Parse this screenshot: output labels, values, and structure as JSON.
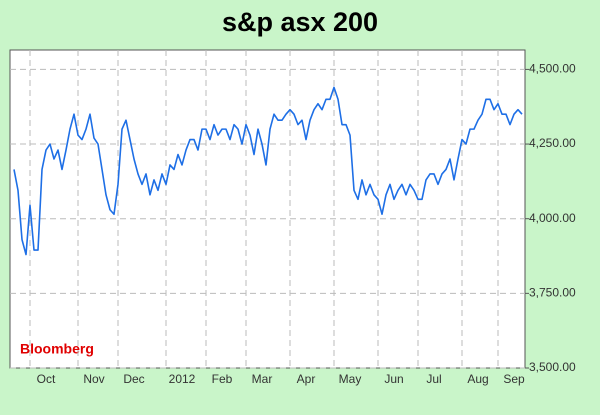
{
  "chart_data": {
    "type": "line",
    "title": "s&p asx 200",
    "annotation": "Bloomberg",
    "categories": [
      null,
      null,
      null,
      null,
      null,
      null,
      null,
      null,
      "Oct",
      null,
      null,
      null,
      null,
      null,
      null,
      null,
      null,
      null,
      null,
      null,
      "Nov",
      null,
      null,
      null,
      null,
      null,
      null,
      null,
      null,
      null,
      "Dec",
      null,
      null,
      null,
      null,
      null,
      null,
      null,
      null,
      null,
      null,
      null,
      "2012",
      null,
      null,
      null,
      null,
      null,
      null,
      null,
      null,
      null,
      "Feb",
      null,
      null,
      null,
      null,
      null,
      null,
      null,
      null,
      null,
      "Mar",
      null,
      null,
      null,
      null,
      null,
      null,
      null,
      null,
      null,
      null,
      "Apr",
      null,
      null,
      null,
      null,
      null,
      null,
      null,
      null,
      null,
      null,
      "May",
      null,
      null,
      null,
      null,
      null,
      null,
      null,
      null,
      null,
      null,
      "Jun",
      null,
      null,
      null,
      null,
      null,
      null,
      null,
      null,
      null,
      "Jul",
      null,
      null,
      null,
      null,
      null,
      null,
      null,
      null,
      null,
      null,
      "Aug",
      null,
      null,
      null,
      null,
      null,
      null,
      null,
      null,
      "Sep",
      null,
      null
    ],
    "values": [
      4165,
      4095,
      3930,
      3880,
      4045,
      3895,
      3895,
      4165,
      4230,
      4250,
      4200,
      4230,
      4165,
      4230,
      4300,
      4350,
      4280,
      4265,
      4300,
      4350,
      4270,
      4250,
      4165,
      4080,
      4030,
      4015,
      4115,
      4300,
      4330,
      4265,
      4200,
      4150,
      4115,
      4150,
      4080,
      4130,
      4095,
      4150,
      4115,
      4180,
      4165,
      4215,
      4180,
      4230,
      4265,
      4265,
      4230,
      4300,
      4300,
      4265,
      4315,
      4280,
      4300,
      4300,
      4265,
      4315,
      4300,
      4250,
      4315,
      4280,
      4215,
      4300,
      4250,
      4180,
      4300,
      4350,
      4330,
      4330,
      4350,
      4365,
      4350,
      4315,
      4330,
      4265,
      4330,
      4365,
      4385,
      4365,
      4400,
      4400,
      4440,
      4400,
      4315,
      4315,
      4280,
      4095,
      4065,
      4130,
      4080,
      4115,
      4080,
      4065,
      4015,
      4080,
      4115,
      4065,
      4095,
      4115,
      4080,
      4115,
      4095,
      4065,
      4065,
      4130,
      4150,
      4150,
      4115,
      4150,
      4165,
      4200,
      4130,
      4200,
      4265,
      4250,
      4300,
      4300,
      4330,
      4350,
      4400,
      4400,
      4365,
      4385,
      4350,
      4350,
      4315,
      4350,
      4365,
      4350
    ],
    "color": "#1e6fe6",
    "ylim": [
      3500,
      4565
    ],
    "yticks": [
      {
        "value": 3500,
        "label": "3,500.00"
      },
      {
        "value": 3750,
        "label": "3,750.00"
      },
      {
        "value": 4000,
        "label": "4,000.00"
      },
      {
        "value": 4250,
        "label": "4,250.00"
      },
      {
        "value": 4500,
        "label": "4,500.00"
      }
    ],
    "grid": true
  }
}
